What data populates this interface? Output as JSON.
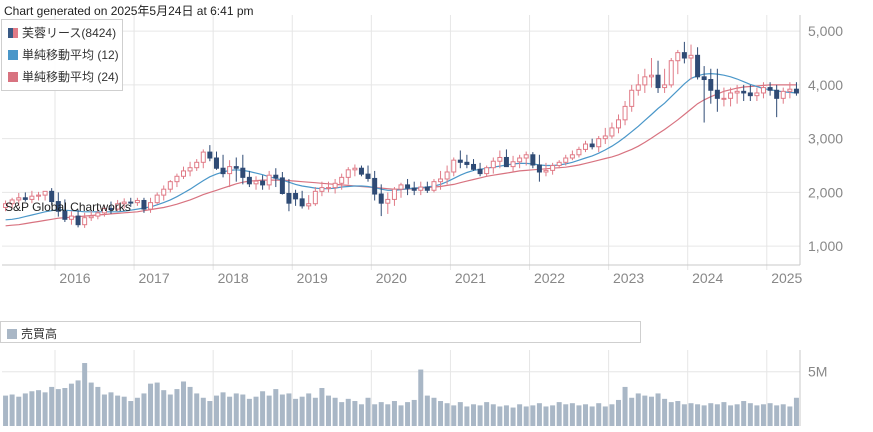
{
  "header": {
    "generated_text": "Chart generated on 2025年5月24日 at 6:41 pm"
  },
  "legend": {
    "candle_label": "芙蓉リース(8424)",
    "ma12_label": "単純移動平均 (12)",
    "ma24_label": "単純移動平均 (24)"
  },
  "watermark": "S&P Global Chartworks",
  "volume_legend": {
    "label": "売買高"
  },
  "colors": {
    "up": "#e07b87",
    "down": "#2f4b75",
    "ma12": "#4a97c9",
    "ma24": "#d87380",
    "volume": "#a9b7c6",
    "grid": "#e6e6e6"
  },
  "chart_data": [
    {
      "type": "candlestick",
      "title": "",
      "xlabel": "",
      "ylabel": "",
      "ylim": [
        650,
        5300
      ],
      "yticks": [
        1000,
        2000,
        3000,
        4000,
        5000
      ],
      "ytick_labels": [
        "1,000",
        "2,000",
        "3,000",
        "4,000",
        "5,000"
      ],
      "xlim": [
        2015.33,
        2025.42
      ],
      "xticks": [
        2016,
        2017,
        2018,
        2019,
        2020,
        2021,
        2022,
        2023,
        2024,
        2025
      ],
      "xtick_labels": [
        "2016",
        "2017",
        "2018",
        "2019",
        "2020",
        "2021",
        "2022",
        "2023",
        "2024",
        "2025"
      ],
      "grid": true,
      "legend_position": "top-left",
      "x": [
        2015.375,
        2015.458,
        2015.542,
        2015.625,
        2015.708,
        2015.792,
        2015.875,
        2015.958,
        2016.042,
        2016.125,
        2016.208,
        2016.292,
        2016.375,
        2016.458,
        2016.542,
        2016.625,
        2016.708,
        2016.792,
        2016.875,
        2016.958,
        2017.042,
        2017.125,
        2017.208,
        2017.292,
        2017.375,
        2017.458,
        2017.542,
        2017.625,
        2017.708,
        2017.792,
        2017.875,
        2017.958,
        2018.042,
        2018.125,
        2018.208,
        2018.292,
        2018.375,
        2018.458,
        2018.542,
        2018.625,
        2018.708,
        2018.792,
        2018.875,
        2018.958,
        2019.042,
        2019.125,
        2019.208,
        2019.292,
        2019.375,
        2019.458,
        2019.542,
        2019.625,
        2019.708,
        2019.792,
        2019.875,
        2019.958,
        2020.042,
        2020.125,
        2020.208,
        2020.292,
        2020.375,
        2020.458,
        2020.542,
        2020.625,
        2020.708,
        2020.792,
        2020.875,
        2020.958,
        2021.042,
        2021.125,
        2021.208,
        2021.292,
        2021.375,
        2021.458,
        2021.542,
        2021.625,
        2021.708,
        2021.792,
        2021.875,
        2021.958,
        2022.042,
        2022.125,
        2022.208,
        2022.292,
        2022.375,
        2022.458,
        2022.542,
        2022.625,
        2022.708,
        2022.792,
        2022.875,
        2022.958,
        2023.042,
        2023.125,
        2023.208,
        2023.292,
        2023.375,
        2023.458,
        2023.542,
        2023.625,
        2023.708,
        2023.792,
        2023.875,
        2023.958,
        2024.042,
        2024.125,
        2024.208,
        2024.292,
        2024.375,
        2024.458,
        2024.542,
        2024.625,
        2024.708,
        2024.792,
        2024.875,
        2024.958,
        2025.042,
        2025.125,
        2025.208,
        2025.292,
        2025.375
      ],
      "open": [
        1720,
        1790,
        1860,
        1900,
        1870,
        1930,
        1950,
        2020,
        1830,
        1650,
        1500,
        1560,
        1400,
        1530,
        1560,
        1620,
        1700,
        1690,
        1790,
        1820,
        1810,
        1850,
        1690,
        1810,
        1950,
        2060,
        2200,
        2300,
        2400,
        2460,
        2560,
        2750,
        2640,
        2450,
        2350,
        2480,
        2450,
        2280,
        2160,
        2210,
        2140,
        2320,
        2270,
        1980,
        1980,
        1880,
        1750,
        1790,
        2020,
        2090,
        2090,
        2170,
        2280,
        2420,
        2450,
        2340,
        2260,
        1970,
        1800,
        1870,
        2060,
        2140,
        2080,
        2040,
        2100,
        2040,
        2200,
        2250,
        2380,
        2600,
        2560,
        2520,
        2430,
        2350,
        2460,
        2580,
        2650,
        2480,
        2570,
        2640,
        2700,
        2510,
        2380,
        2410,
        2500,
        2560,
        2640,
        2700,
        2800,
        2900,
        2850,
        3000,
        3050,
        3200,
        3350,
        3600,
        3900,
        4000,
        4150,
        4180,
        3950,
        4000,
        4450,
        4600,
        4500,
        4550,
        4150,
        4100,
        3900,
        3750,
        3750,
        3850,
        3880,
        3850,
        3800,
        3850,
        3950,
        3900,
        3750,
        3880,
        3920
      ],
      "high": [
        1850,
        1900,
        1990,
        2000,
        2030,
        2010,
        2020,
        2080,
        2000,
        1870,
        1650,
        1680,
        1620,
        1650,
        1700,
        1750,
        1830,
        1860,
        1890,
        1900,
        1900,
        1900,
        1900,
        2000,
        2130,
        2230,
        2350,
        2480,
        2570,
        2620,
        2800,
        2880,
        2760,
        2700,
        2600,
        2650,
        2700,
        2400,
        2300,
        2320,
        2400,
        2450,
        2380,
        2250,
        2050,
        2030,
        1950,
        2100,
        2200,
        2200,
        2250,
        2350,
        2470,
        2520,
        2500,
        2500,
        2400,
        2150,
        2000,
        2100,
        2180,
        2250,
        2200,
        2200,
        2200,
        2250,
        2400,
        2500,
        2650,
        2780,
        2700,
        2620,
        2550,
        2500,
        2650,
        2780,
        2800,
        2680,
        2700,
        2760,
        2750,
        2700,
        2550,
        2550,
        2600,
        2700,
        2780,
        2850,
        2960,
        3000,
        3050,
        3200,
        3300,
        3450,
        3700,
        4000,
        4200,
        4300,
        4500,
        4450,
        4300,
        4500,
        4650,
        4800,
        4750,
        4700,
        4350,
        4300,
        4300,
        3950,
        3950,
        4000,
        4000,
        4000,
        3950,
        4050,
        4050,
        4000,
        3950,
        4050,
        4050
      ],
      "low": [
        1650,
        1700,
        1750,
        1830,
        1800,
        1850,
        1850,
        1760,
        1550,
        1450,
        1400,
        1350,
        1340,
        1470,
        1500,
        1550,
        1600,
        1650,
        1700,
        1730,
        1750,
        1620,
        1620,
        1780,
        1850,
        2000,
        2100,
        2250,
        2300,
        2400,
        2450,
        2580,
        2420,
        2280,
        2100,
        2200,
        2150,
        2100,
        2050,
        2050,
        2050,
        2100,
        1960,
        1650,
        1750,
        1700,
        1680,
        1750,
        1930,
        2000,
        1980,
        2050,
        2150,
        2300,
        2300,
        2200,
        1850,
        1560,
        1600,
        1750,
        1900,
        1950,
        1950,
        1950,
        1990,
        2000,
        2050,
        2150,
        2300,
        2450,
        2450,
        2400,
        2300,
        2300,
        2350,
        2450,
        2480,
        2380,
        2450,
        2500,
        2450,
        2200,
        2300,
        2330,
        2450,
        2500,
        2600,
        2650,
        2750,
        2800,
        2750,
        2900,
        3000,
        3100,
        3250,
        3500,
        3800,
        3850,
        3950,
        3850,
        3850,
        3950,
        4200,
        4400,
        4100,
        4100,
        3300,
        3650,
        3500,
        3600,
        3600,
        3650,
        3700,
        3700,
        3700,
        3750,
        3800,
        3400,
        3650,
        3750,
        3800
      ],
      "close": [
        1790,
        1860,
        1900,
        1870,
        1930,
        1950,
        2020,
        1830,
        1650,
        1500,
        1560,
        1400,
        1530,
        1560,
        1620,
        1700,
        1690,
        1790,
        1820,
        1810,
        1850,
        1690,
        1810,
        1950,
        2060,
        2200,
        2300,
        2400,
        2460,
        2560,
        2750,
        2640,
        2450,
        2350,
        2480,
        2450,
        2280,
        2160,
        2210,
        2140,
        2320,
        2270,
        1980,
        1800,
        1880,
        1750,
        1790,
        2020,
        2090,
        2090,
        2170,
        2280,
        2420,
        2450,
        2340,
        2260,
        1970,
        1800,
        1870,
        2060,
        2140,
        2080,
        2040,
        2100,
        2040,
        2200,
        2250,
        2380,
        2600,
        2560,
        2520,
        2430,
        2350,
        2460,
        2580,
        2650,
        2480,
        2570,
        2640,
        2700,
        2510,
        2380,
        2410,
        2500,
        2560,
        2640,
        2700,
        2800,
        2900,
        2850,
        3000,
        3050,
        3200,
        3350,
        3600,
        3900,
        4000,
        4150,
        4180,
        3950,
        4000,
        4450,
        4600,
        4500,
        4550,
        4150,
        4100,
        3900,
        3750,
        3750,
        3850,
        3880,
        3850,
        3800,
        3850,
        3950,
        3900,
        3750,
        3880,
        3920,
        3850
      ],
      "ma12": [
        1490,
        1500,
        1520,
        1550,
        1580,
        1610,
        1640,
        1660,
        1680,
        1670,
        1660,
        1650,
        1640,
        1640,
        1640,
        1640,
        1640,
        1640,
        1650,
        1670,
        1690,
        1710,
        1730,
        1770,
        1810,
        1860,
        1920,
        1990,
        2060,
        2140,
        2220,
        2290,
        2340,
        2380,
        2410,
        2420,
        2410,
        2390,
        2360,
        2330,
        2290,
        2260,
        2230,
        2190,
        2150,
        2120,
        2100,
        2080,
        2070,
        2070,
        2080,
        2100,
        2110,
        2120,
        2120,
        2110,
        2090,
        2060,
        2040,
        2040,
        2050,
        2070,
        2080,
        2090,
        2100,
        2120,
        2150,
        2200,
        2260,
        2320,
        2370,
        2410,
        2430,
        2450,
        2470,
        2490,
        2510,
        2530,
        2540,
        2540,
        2530,
        2510,
        2500,
        2500,
        2510,
        2530,
        2560,
        2600,
        2640,
        2680,
        2730,
        2790,
        2860,
        2940,
        3030,
        3130,
        3230,
        3340,
        3450,
        3560,
        3660,
        3780,
        3900,
        4020,
        4120,
        4170,
        4200,
        4210,
        4200,
        4180,
        4150,
        4110,
        4060,
        4010,
        3970,
        3930,
        3910,
        3890,
        3870,
        3860,
        3850
      ],
      "ma24": [
        1380,
        1390,
        1400,
        1420,
        1440,
        1460,
        1480,
        1500,
        1520,
        1530,
        1540,
        1550,
        1560,
        1570,
        1580,
        1590,
        1600,
        1610,
        1620,
        1630,
        1640,
        1660,
        1680,
        1700,
        1720,
        1750,
        1780,
        1820,
        1860,
        1910,
        1960,
        2000,
        2040,
        2080,
        2120,
        2160,
        2190,
        2210,
        2220,
        2230,
        2230,
        2230,
        2230,
        2220,
        2210,
        2200,
        2190,
        2180,
        2170,
        2160,
        2150,
        2140,
        2130,
        2120,
        2110,
        2100,
        2090,
        2080,
        2070,
        2060,
        2060,
        2060,
        2070,
        2080,
        2090,
        2100,
        2110,
        2130,
        2150,
        2180,
        2210,
        2240,
        2270,
        2300,
        2320,
        2340,
        2360,
        2380,
        2400,
        2410,
        2420,
        2430,
        2440,
        2450,
        2460,
        2470,
        2490,
        2510,
        2540,
        2570,
        2600,
        2630,
        2660,
        2700,
        2750,
        2800,
        2860,
        2930,
        3010,
        3090,
        3170,
        3260,
        3350,
        3450,
        3550,
        3650,
        3720,
        3780,
        3830,
        3880,
        3910,
        3940,
        3960,
        3970,
        3980,
        3990,
        4000,
        4000,
        4000,
        4000,
        4000
      ]
    },
    {
      "type": "bar",
      "title": "",
      "ylabel": "",
      "ytick_labels": [
        "5M"
      ],
      "ylim": [
        0,
        7000000
      ],
      "values": [
        2.8,
        2.9,
        2.7,
        3.0,
        3.2,
        3.3,
        3.1,
        3.6,
        3.4,
        3.5,
        3.9,
        4.2,
        5.8,
        4.0,
        3.6,
        2.9,
        3.1,
        2.8,
        2.7,
        2.3,
        2.6,
        3.0,
        3.9,
        4.0,
        3.3,
        2.9,
        3.4,
        4.1,
        3.6,
        3.0,
        2.6,
        2.3,
        2.8,
        3.1,
        2.7,
        3.0,
        2.9,
        2.5,
        2.7,
        3.2,
        2.8,
        3.4,
        2.9,
        3.0,
        2.5,
        2.7,
        3.0,
        2.6,
        3.5,
        2.8,
        2.6,
        2.2,
        2.5,
        2.3,
        2.0,
        2.6,
        2.0,
        2.2,
        2.0,
        2.3,
        1.9,
        2.2,
        2.4,
        5.2,
        2.8,
        2.6,
        2.3,
        2.1,
        1.9,
        2.2,
        1.8,
        2.0,
        1.9,
        2.2,
        2.0,
        1.8,
        1.9,
        1.7,
        2.0,
        1.8,
        1.9,
        2.1,
        1.8,
        1.9,
        2.2,
        2.0,
        2.1,
        1.9,
        2.0,
        1.8,
        2.1,
        1.8,
        2.0,
        2.4,
        3.6,
        2.6,
        3.0,
        2.8,
        2.7,
        3.0,
        2.5,
        2.2,
        2.3,
        2.0,
        2.1,
        2.0,
        1.9,
        2.1,
        2.0,
        2.2,
        1.9,
        2.0,
        2.3,
        2.1,
        1.9,
        2.0,
        2.1,
        1.9,
        2.0,
        1.8,
        2.6
      ]
    }
  ]
}
